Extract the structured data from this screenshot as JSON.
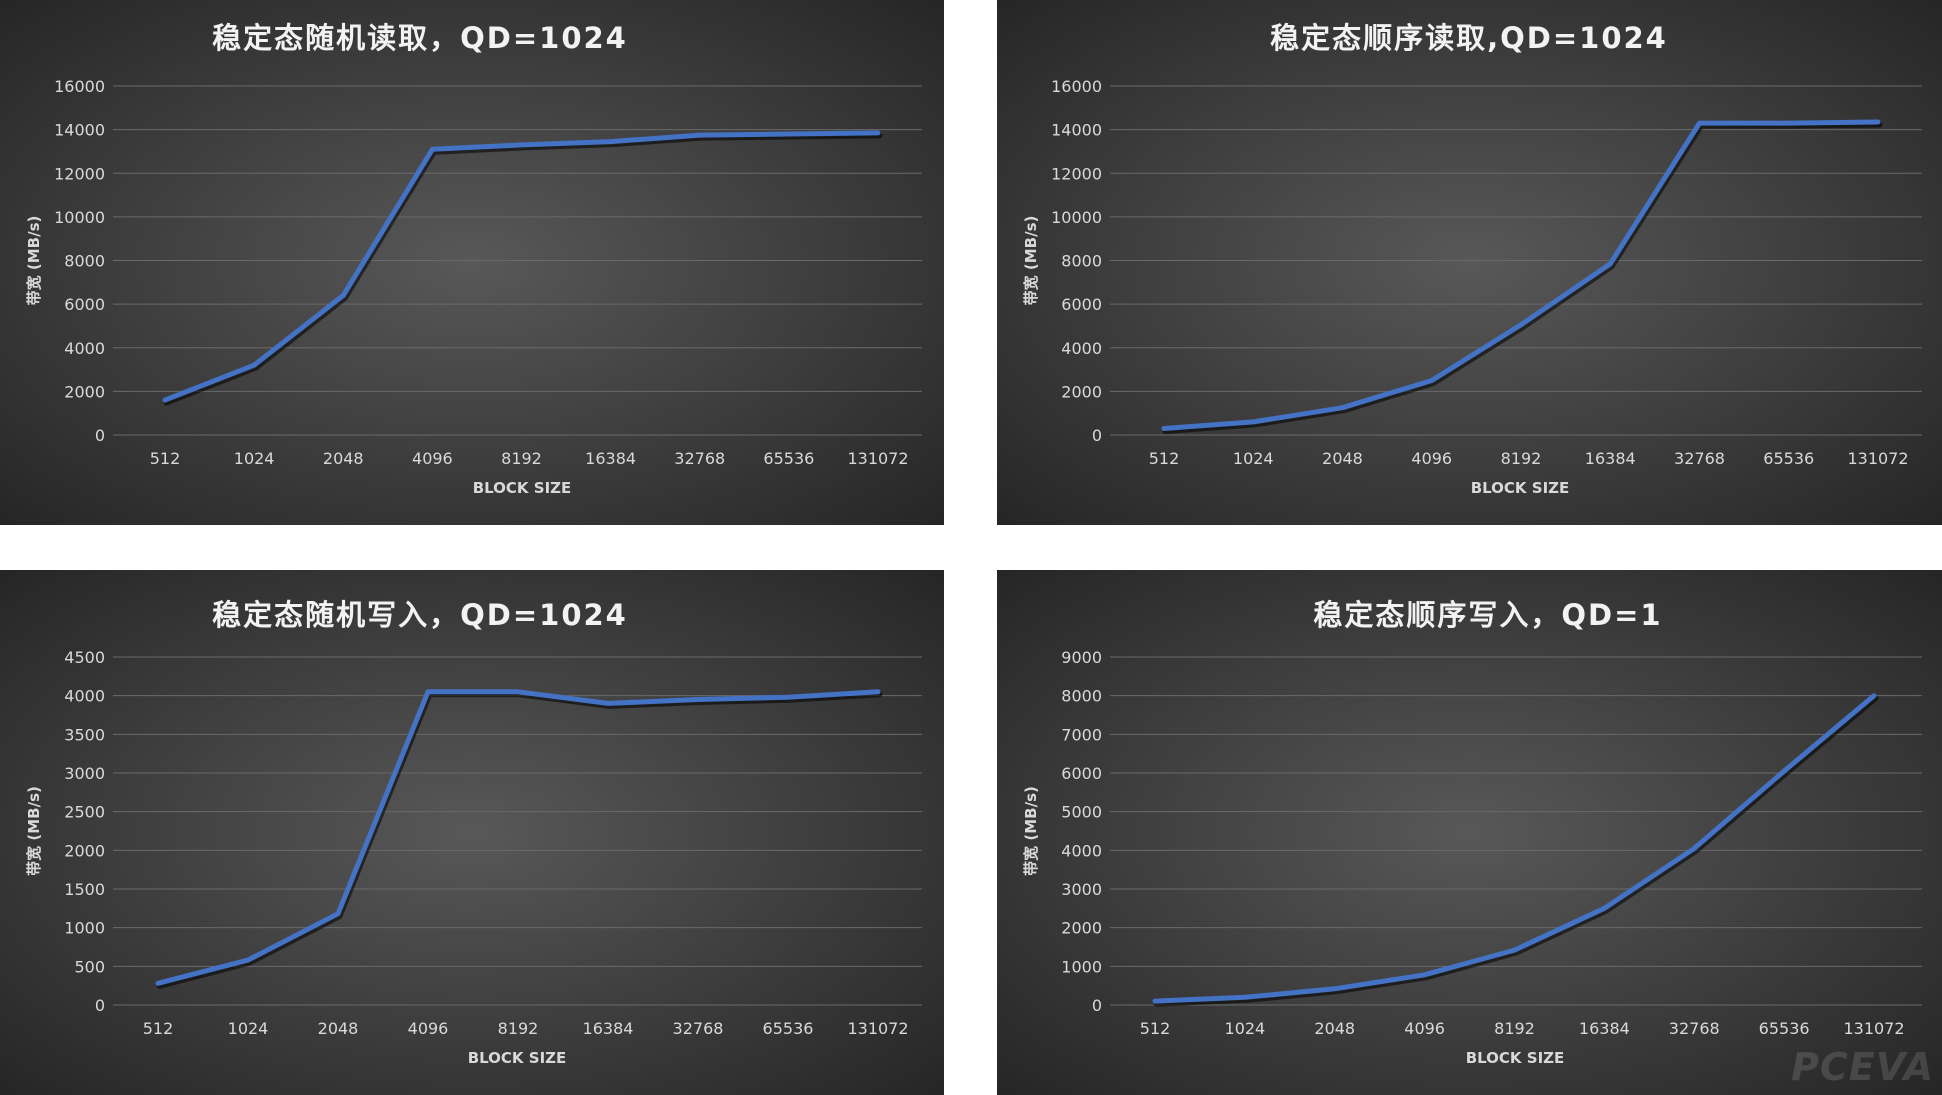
{
  "watermark": "PCEVA",
  "chart_data": [
    {
      "type": "line",
      "title": "稳定态随机读取，QD=1024",
      "xlabel": "BLOCK SIZE",
      "ylabel": "带宽 (MB/s)",
      "categories": [
        "512",
        "1024",
        "2048",
        "4096",
        "8192",
        "16384",
        "32768",
        "65536",
        "131072"
      ],
      "yticks": [
        "0",
        "2000",
        "4000",
        "6000",
        "8000",
        "10000",
        "12000",
        "14000",
        "16000"
      ],
      "ylim": [
        0,
        16000
      ],
      "series": [
        {
          "values": [
            1600,
            3200,
            6400,
            13100,
            13300,
            13450,
            13750,
            13800,
            13850
          ]
        }
      ],
      "line_color": "#4472c4",
      "grid": true
    },
    {
      "type": "line",
      "title": "稳定态顺序读取,QD=1024",
      "xlabel": "BLOCK SIZE",
      "ylabel": "带宽 (MB/s)",
      "categories": [
        "512",
        "1024",
        "2048",
        "4096",
        "8192",
        "16384",
        "32768",
        "65536",
        "131072"
      ],
      "yticks": [
        "0",
        "2000",
        "4000",
        "6000",
        "8000",
        "10000",
        "12000",
        "14000",
        "16000"
      ],
      "ylim": [
        0,
        16000
      ],
      "series": [
        {
          "values": [
            300,
            600,
            1250,
            2500,
            5050,
            7850,
            14300,
            14300,
            14350
          ]
        }
      ],
      "line_color": "#4472c4",
      "grid": true
    },
    {
      "type": "line",
      "title": "稳定态随机写入，QD=1024",
      "xlabel": "BLOCK SIZE",
      "ylabel": "带宽 (MB/s)",
      "categories": [
        "512",
        "1024",
        "2048",
        "4096",
        "8192",
        "16384",
        "32768",
        "65536",
        "131072"
      ],
      "yticks": [
        "0",
        "500",
        "1000",
        "1500",
        "2000",
        "2500",
        "3000",
        "3500",
        "4000",
        "4500"
      ],
      "ylim": [
        0,
        4500
      ],
      "series": [
        {
          "values": [
            280,
            580,
            1180,
            4050,
            4050,
            3900,
            3950,
            3980,
            4050
          ]
        }
      ],
      "line_color": "#4472c4",
      "grid": true
    },
    {
      "type": "line",
      "title": "稳定态顺序写入，QD=1",
      "xlabel": "BLOCK SIZE",
      "ylabel": "带宽 (MB/s)",
      "categories": [
        "512",
        "1024",
        "2048",
        "4096",
        "8192",
        "16384",
        "32768",
        "65536",
        "131072"
      ],
      "yticks": [
        "0",
        "1000",
        "2000",
        "3000",
        "4000",
        "5000",
        "6000",
        "7000",
        "8000",
        "9000"
      ],
      "ylim": [
        0,
        9000
      ],
      "series": [
        {
          "values": [
            100,
            200,
            420,
            780,
            1420,
            2500,
            4050,
            6050,
            8000
          ]
        }
      ],
      "line_color": "#4472c4",
      "grid": true
    }
  ]
}
